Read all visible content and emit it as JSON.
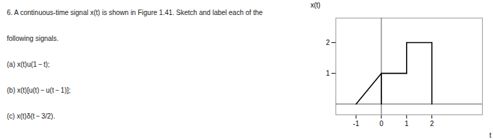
{
  "chart_data": {
    "type": "line",
    "annotations": [
      "6. A continuous-time signal x(t) is shown in Figure 1.41. Sketch and label each of the",
      "following signals.",
      "(a) x(t)u(1 − t);",
      "(b) x(t)[u(t) − u(t − 1)];",
      "(c) x(t)δ(t − 3/2)."
    ],
    "xlabel": "t",
    "ylabel": "x(t)",
    "color": "#000000",
    "segments": [
      {
        "x": [
          -1,
          0
        ],
        "y": [
          0,
          1
        ]
      },
      {
        "x": [
          0,
          0
        ],
        "y": [
          0,
          1
        ]
      },
      {
        "x": [
          0,
          1
        ],
        "y": [
          1,
          1
        ]
      },
      {
        "x": [
          1,
          1
        ],
        "y": [
          1,
          2
        ]
      },
      {
        "x": [
          1,
          2
        ],
        "y": [
          2,
          2
        ]
      },
      {
        "x": [
          2,
          2
        ],
        "y": [
          2,
          0
        ]
      }
    ],
    "xlim": [
      -1.8,
      4.0
    ],
    "ylim": [
      -0.35,
      2.8
    ],
    "xticks": [
      -1,
      0,
      1,
      2
    ],
    "yticks": [
      1,
      2
    ],
    "grid": false
  }
}
